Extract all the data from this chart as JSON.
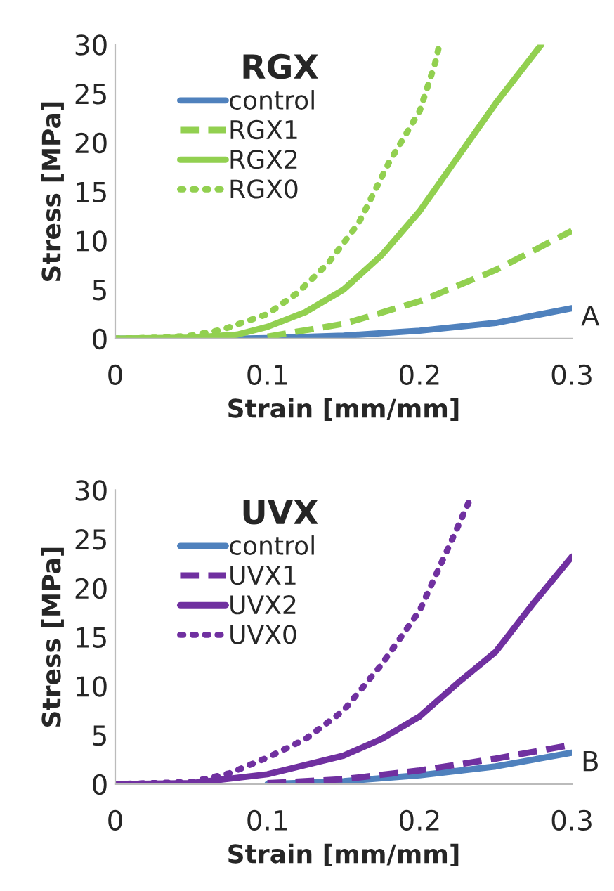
{
  "chart_data": [
    {
      "type": "line",
      "title": "RGX",
      "xlabel": "Strain [mm/mm]",
      "ylabel": "Stress [MPa]",
      "xlim": [
        0,
        0.3
      ],
      "ylim": [
        0,
        30
      ],
      "xticks": [
        0,
        0.1,
        0.2,
        0.3
      ],
      "yticks": [
        0,
        5,
        10,
        15,
        20,
        25,
        30
      ],
      "grid": false,
      "legend": "top left",
      "annotations": [
        "A"
      ],
      "series": [
        {
          "name": "control",
          "color": "#4f81bd",
          "line_style": "solid",
          "x": [
            0,
            0.08,
            0.1,
            0.15,
            0.2,
            0.25,
            0.3
          ],
          "values": [
            0,
            0,
            0.05,
            0.3,
            0.8,
            1.6,
            3.1
          ]
        },
        {
          "name": "RGX1",
          "color": "#92d050",
          "line_style": "dashed",
          "x": [
            0.1,
            0.15,
            0.2,
            0.25,
            0.3
          ],
          "values": [
            0.2,
            1.5,
            3.8,
            7,
            11
          ]
        },
        {
          "name": "RGX2",
          "color": "#92d050",
          "line_style": "solid",
          "x": [
            0,
            0.05,
            0.08,
            0.1,
            0.125,
            0.15,
            0.175,
            0.2,
            0.225,
            0.25,
            0.28
          ],
          "values": [
            0,
            0.1,
            0.4,
            1.2,
            2.7,
            5.0,
            8.5,
            13,
            18.5,
            24,
            30
          ]
        },
        {
          "name": "RGX0",
          "color": "#92d050",
          "line_style": "dotted",
          "x": [
            0,
            0.03,
            0.05,
            0.07,
            0.1,
            0.12,
            0.14,
            0.16,
            0.18,
            0.2,
            0.21,
            0.213
          ],
          "values": [
            0,
            0.1,
            0.3,
            0.9,
            2.5,
            4.7,
            7.7,
            11.8,
            18,
            23.2,
            28,
            30
          ]
        }
      ]
    },
    {
      "type": "line",
      "title": "UVX",
      "xlabel": "Strain [mm/mm]",
      "ylabel": "Stress [MPa]",
      "xlim": [
        0,
        0.3
      ],
      "ylim": [
        0,
        30
      ],
      "xticks": [
        0,
        0.1,
        0.2,
        0.3
      ],
      "yticks": [
        0,
        5,
        10,
        15,
        20,
        25,
        30
      ],
      "grid": false,
      "legend": "top left",
      "annotations": [
        "B"
      ],
      "series": [
        {
          "name": "control",
          "color": "#4f81bd",
          "line_style": "solid",
          "x": [
            0.1,
            0.15,
            0.2,
            0.25,
            0.3
          ],
          "values": [
            0,
            0.3,
            0.9,
            1.8,
            3.2
          ]
        },
        {
          "name": "UVX1",
          "color": "#7030a0",
          "line_style": "dashed",
          "x": [
            0.1,
            0.15,
            0.2,
            0.25,
            0.3
          ],
          "values": [
            0.1,
            0.5,
            1.4,
            2.6,
            4.0
          ]
        },
        {
          "name": "UVX2",
          "color": "#7030a0",
          "line_style": "solid",
          "x": [
            0,
            0.05,
            0.1,
            0.15,
            0.175,
            0.2,
            0.225,
            0.25,
            0.275,
            0.3
          ],
          "values": [
            0,
            0.1,
            1.0,
            2.9,
            4.6,
            6.9,
            10.3,
            13.5,
            18.5,
            23.2
          ]
        },
        {
          "name": "UVX0",
          "color": "#7030a0",
          "line_style": "dotted",
          "x": [
            0,
            0.05,
            0.075,
            0.1,
            0.125,
            0.15,
            0.175,
            0.2,
            0.22,
            0.233
          ],
          "values": [
            0,
            0.2,
            1.1,
            2.7,
            4.6,
            7.5,
            12.2,
            17.7,
            24.5,
            29
          ]
        }
      ]
    }
  ]
}
